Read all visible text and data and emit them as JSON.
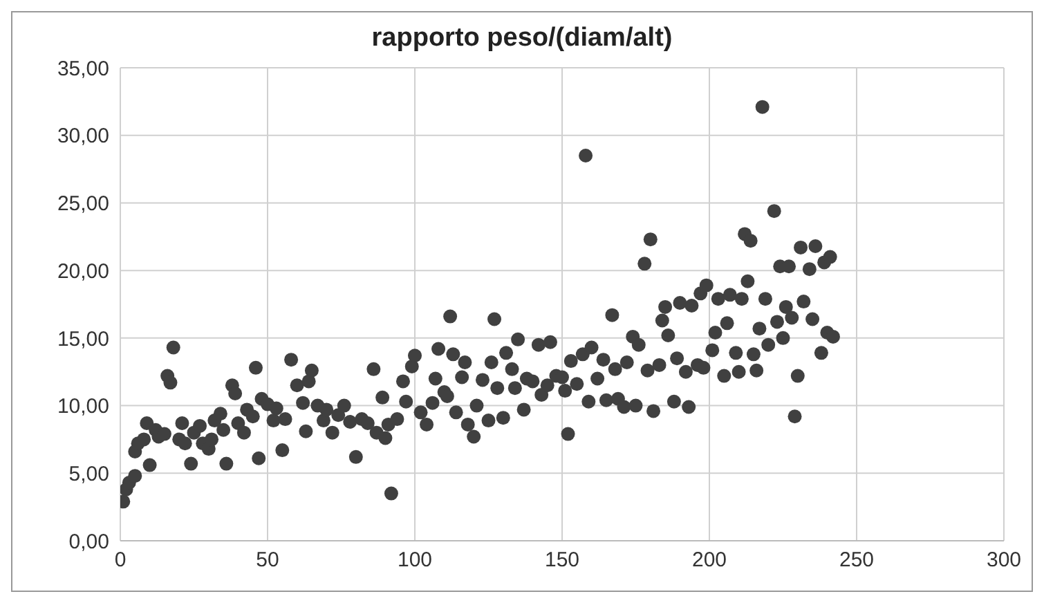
{
  "chart_data": {
    "type": "scatter",
    "title": "rapporto peso/(diam/alt)",
    "x": [
      1,
      2,
      3,
      5,
      5,
      6,
      8,
      9,
      10,
      12,
      13,
      15,
      16,
      17,
      18,
      20,
      21,
      22,
      24,
      25,
      27,
      28,
      30,
      31,
      32,
      34,
      35,
      36,
      38,
      39,
      40,
      42,
      43,
      45,
      46,
      47,
      48,
      50,
      52,
      53,
      55,
      56,
      58,
      60,
      62,
      63,
      64,
      65,
      67,
      69,
      70,
      72,
      74,
      76,
      78,
      80,
      82,
      84,
      86,
      87,
      89,
      90,
      91,
      92,
      94,
      96,
      97,
      99,
      100,
      102,
      104,
      106,
      107,
      108,
      110,
      111,
      112,
      113,
      114,
      116,
      117,
      118,
      120,
      121,
      123,
      125,
      126,
      127,
      128,
      130,
      131,
      133,
      134,
      135,
      137,
      138,
      140,
      142,
      143,
      145,
      146,
      148,
      150,
      151,
      152,
      153,
      155,
      157,
      158,
      159,
      160,
      162,
      164,
      165,
      167,
      168,
      169,
      171,
      172,
      174,
      175,
      176,
      178,
      179,
      180,
      181,
      183,
      184,
      185,
      186,
      188,
      189,
      190,
      192,
      193,
      194,
      196,
      197,
      198,
      199,
      201,
      202,
      203,
      205,
      206,
      207,
      209,
      210,
      211,
      212,
      213,
      214,
      215,
      216,
      217,
      218,
      219,
      220,
      222,
      223,
      224,
      225,
      226,
      227,
      228,
      229,
      230,
      231,
      232,
      234,
      235,
      236,
      238,
      239,
      240,
      241,
      242
    ],
    "values": [
      2.9,
      3.8,
      4.3,
      4.8,
      6.6,
      7.2,
      7.5,
      8.7,
      5.6,
      8.2,
      7.7,
      7.9,
      12.2,
      11.7,
      14.3,
      7.5,
      8.7,
      7.2,
      5.7,
      8.0,
      8.5,
      7.2,
      6.8,
      7.5,
      8.9,
      9.4,
      8.2,
      5.7,
      11.5,
      10.9,
      8.7,
      8.0,
      9.7,
      9.2,
      12.8,
      6.1,
      10.5,
      10.1,
      8.9,
      9.8,
      6.7,
      9.0,
      13.4,
      11.5,
      10.2,
      8.1,
      11.8,
      12.6,
      10.0,
      8.9,
      9.7,
      8.0,
      9.3,
      10.0,
      8.8,
      6.2,
      9.0,
      8.7,
      12.7,
      8.0,
      10.6,
      7.6,
      8.6,
      3.5,
      9.0,
      11.8,
      10.3,
      12.9,
      13.7,
      9.5,
      8.6,
      10.2,
      12.0,
      14.2,
      11.0,
      10.7,
      16.6,
      13.8,
      9.5,
      12.1,
      13.2,
      8.6,
      7.7,
      10.0,
      11.9,
      8.9,
      13.2,
      16.4,
      11.3,
      9.1,
      13.9,
      12.7,
      11.3,
      14.9,
      9.7,
      12.0,
      11.8,
      14.5,
      10.8,
      11.5,
      14.7,
      12.2,
      12.1,
      11.1,
      7.9,
      13.3,
      11.6,
      13.8,
      28.5,
      10.3,
      14.3,
      12.0,
      13.4,
      10.4,
      16.7,
      12.7,
      10.5,
      9.9,
      13.2,
      15.1,
      10.0,
      14.5,
      20.5,
      12.6,
      22.3,
      9.6,
      13.0,
      16.3,
      17.3,
      15.2,
      10.3,
      13.5,
      17.6,
      12.5,
      9.9,
      17.4,
      13.0,
      18.3,
      12.8,
      18.9,
      14.1,
      15.4,
      17.9,
      12.2,
      16.1,
      18.2,
      13.9,
      12.5,
      17.9,
      22.7,
      19.2,
      22.2,
      13.8,
      12.6,
      15.7,
      32.1,
      17.9,
      14.5,
      24.4,
      16.2,
      20.3,
      15.0,
      17.3,
      20.3,
      16.5,
      9.2,
      12.2,
      21.7,
      17.7,
      20.1,
      16.4,
      21.8,
      13.9,
      20.6,
      15.4,
      21.0,
      15.1
    ],
    "color": "#404040",
    "marker": "circle",
    "grid": true,
    "xlim": [
      0,
      300
    ],
    "xticks": [
      0,
      50,
      100,
      150,
      200,
      250,
      300
    ],
    "ylim": [
      0,
      35
    ],
    "yticks": [
      {
        "value": 0,
        "label": "0,00"
      },
      {
        "value": 5,
        "label": "5,00"
      },
      {
        "value": 10,
        "label": "10,00"
      },
      {
        "value": 15,
        "label": "15,00"
      },
      {
        "value": 20,
        "label": "20,00"
      },
      {
        "value": 25,
        "label": "25,00"
      },
      {
        "value": 30,
        "label": "30,00"
      },
      {
        "value": 35,
        "label": "35,00"
      }
    ]
  }
}
